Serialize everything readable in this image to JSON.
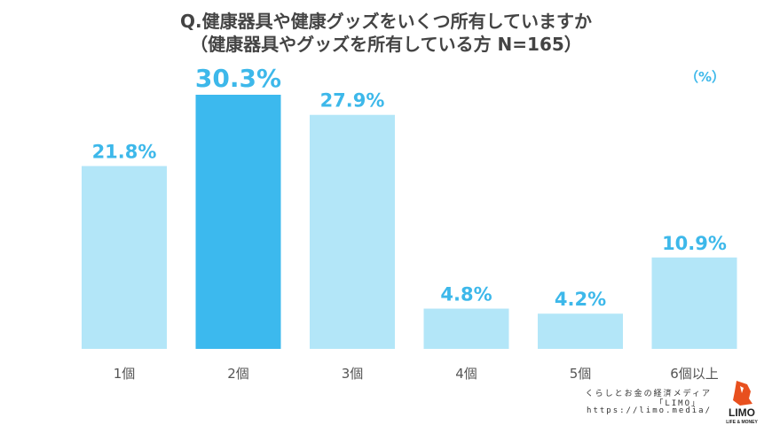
{
  "title_line1": "Q.健康器具や健康グッズをいくつ所有していますか",
  "title_line2": "（健康器具やグッズを所有している方 N=165）",
  "unit_label": "（%）",
  "colors": {
    "bar": "#b3e6f8",
    "highlight": "#3cb9ee",
    "label": "#3db8ea"
  },
  "chart_data": {
    "type": "bar",
    "categories": [
      "1個",
      "2個",
      "3個",
      "4個",
      "5個",
      "6個以上"
    ],
    "values": [
      21.8,
      30.3,
      27.9,
      4.8,
      4.2,
      10.9
    ],
    "value_labels": [
      "21.8%",
      "30.3%",
      "27.9%",
      "4.8%",
      "4.2%",
      "10.9%"
    ],
    "highlight_index": 1,
    "ylim": [
      0,
      30.3
    ],
    "title": "Q.健康器具や健康グッズをいくつ所有していますか",
    "xlabel": "",
    "ylabel": ""
  },
  "footer": {
    "line1": "くらしとお金の経済メディア",
    "line2": "「LIMO」",
    "line3": "https://limo.media/"
  },
  "logo": {
    "text": "LIMO",
    "subtext": "LIFE & MONEY"
  }
}
